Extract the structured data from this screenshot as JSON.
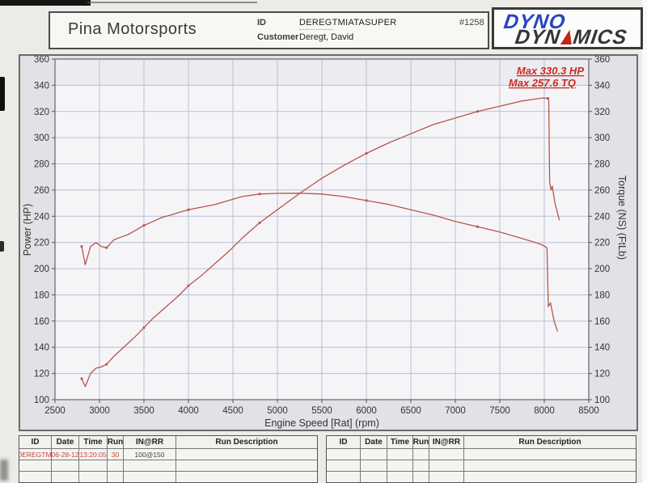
{
  "header": {
    "shop_name": "Pina Motorsports",
    "id_label": "ID",
    "id_value": "DEREGTMIATASUPER",
    "customer_label": "Customer",
    "customer_value": "Deregt, David",
    "job_number": "#1258"
  },
  "logo": {
    "line1": "DYNO",
    "line2_pre": "DYN",
    "line2_post": "MICS",
    "brand_blue": "#2743c6",
    "brand_dark": "#34343c",
    "brand_red": "#c1251c"
  },
  "chart_data": {
    "type": "line",
    "xlabel": "Engine Speed [Rat] (rpm)",
    "ylabel_left": "Power (HP)",
    "ylabel_right": "Torque (NS) (FtLb)",
    "xlim": [
      2500,
      8500
    ],
    "ylim": [
      100,
      360
    ],
    "x_ticks": [
      2500,
      3000,
      3500,
      4000,
      4500,
      5000,
      5500,
      6000,
      6500,
      7000,
      7500,
      8000,
      8500
    ],
    "y_ticks": [
      100,
      120,
      140,
      160,
      180,
      200,
      220,
      240,
      260,
      280,
      300,
      320,
      340,
      360
    ],
    "grid": true,
    "legend": "none",
    "line_color": "#b8544e",
    "grid_color": "#b9c0d4",
    "annotations": {
      "max_hp": "Max 330.3 HP",
      "max_tq": "Max 257.6 TQ"
    },
    "max_values": {
      "power_hp": 330.3,
      "torque_ftlb": 257.6
    },
    "series": [
      {
        "name": "Power (HP)",
        "x": [
          2800,
          2840,
          2900,
          2960,
          3020,
          3080,
          3160,
          3240,
          3320,
          3400,
          3500,
          3600,
          3700,
          3800,
          3900,
          4000,
          4150,
          4300,
          4450,
          4600,
          4800,
          5000,
          5250,
          5500,
          5750,
          6000,
          6250,
          6500,
          6750,
          7000,
          7250,
          7500,
          7750,
          7900,
          7980,
          8040,
          8050,
          8060,
          8075,
          8090,
          8120,
          8170
        ],
        "y": [
          116,
          110,
          120,
          124,
          125,
          127,
          133,
          138,
          143,
          148,
          155,
          162,
          168,
          174,
          180,
          187,
          195,
          204,
          213,
          223,
          235,
          245,
          257.5,
          269,
          279,
          288,
          296,
          303,
          310,
          315,
          320,
          324,
          328,
          329.5,
          330.3,
          330,
          329,
          266,
          260,
          263,
          250,
          237
        ]
      },
      {
        "name": "Torque (FtLb)",
        "x": [
          2800,
          2840,
          2900,
          2960,
          3020,
          3080,
          3160,
          3240,
          3320,
          3400,
          3500,
          3600,
          3700,
          3800,
          3900,
          4000,
          4150,
          4300,
          4450,
          4600,
          4800,
          5000,
          5250,
          5500,
          5750,
          6000,
          6250,
          6500,
          6750,
          7000,
          7250,
          7500,
          7750,
          7900,
          7980,
          8030,
          8045,
          8070,
          8110,
          8150
        ],
        "y": [
          217,
          203,
          217,
          220,
          217,
          216,
          222,
          224,
          226,
          229,
          233,
          236,
          239,
          241,
          243,
          245,
          247,
          249,
          252,
          255,
          257,
          257.5,
          257.6,
          257,
          255,
          252,
          249,
          245,
          241,
          236,
          232,
          228,
          223,
          220,
          218,
          216,
          171,
          174,
          160,
          152
        ]
      }
    ]
  },
  "tables": {
    "headers": [
      "ID",
      "Date",
      "Time",
      "Run",
      "IN@RR",
      "Run Description"
    ],
    "left_rows": [
      [
        "DEREGTMI",
        "06-28-12",
        "13:20:05",
        "30",
        "100@150",
        ""
      ],
      [
        "",
        "",
        "",
        "",
        "",
        ""
      ],
      [
        "",
        "",
        "",
        "",
        "",
        ""
      ]
    ],
    "right_rows": [
      [
        "",
        "",
        "",
        "",
        "",
        ""
      ],
      [
        "",
        "",
        "",
        "",
        "",
        ""
      ],
      [
        "",
        "",
        "",
        "",
        "",
        ""
      ]
    ]
  }
}
